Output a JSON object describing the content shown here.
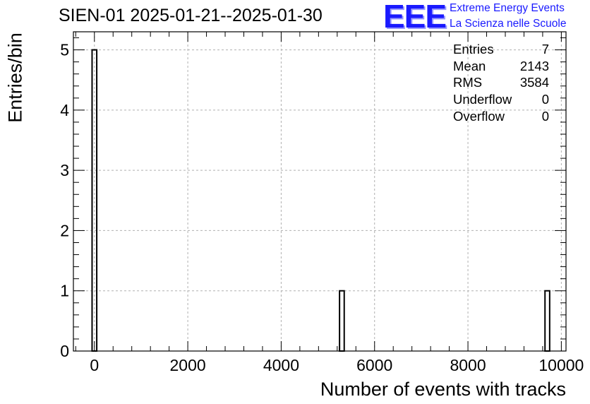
{
  "title": "SIEN-01 2025-01-21--2025-01-30",
  "logo": {
    "mark": "EEE",
    "line1": "Extreme Energy Events",
    "line2": "La Scienza nelle Scuole",
    "color": "#1a1aff"
  },
  "stats": [
    {
      "label": "Entries",
      "value": "7"
    },
    {
      "label": "Mean",
      "value": "2143"
    },
    {
      "label": "RMS",
      "value": "3584"
    },
    {
      "label": "Underflow",
      "value": "0"
    },
    {
      "label": "Overflow",
      "value": "0"
    }
  ],
  "chart_data": {
    "type": "bar",
    "title": "SIEN-01 2025-01-21--2025-01-30",
    "xlabel": "Number of events with tracks",
    "ylabel": "Entries/bin",
    "xlim": [
      -450,
      10100
    ],
    "ylim": [
      0,
      5.3
    ],
    "xticks": [
      0,
      2000,
      4000,
      6000,
      8000,
      10000
    ],
    "yticks": [
      0,
      1,
      2,
      3,
      4,
      5
    ],
    "grid": true,
    "bin_width": 100,
    "bins": [
      {
        "x0": -50,
        "x1": 50,
        "count": 5
      },
      {
        "x0": 5250,
        "x1": 5350,
        "count": 1
      },
      {
        "x0": 9650,
        "x1": 9750,
        "count": 1
      }
    ]
  }
}
